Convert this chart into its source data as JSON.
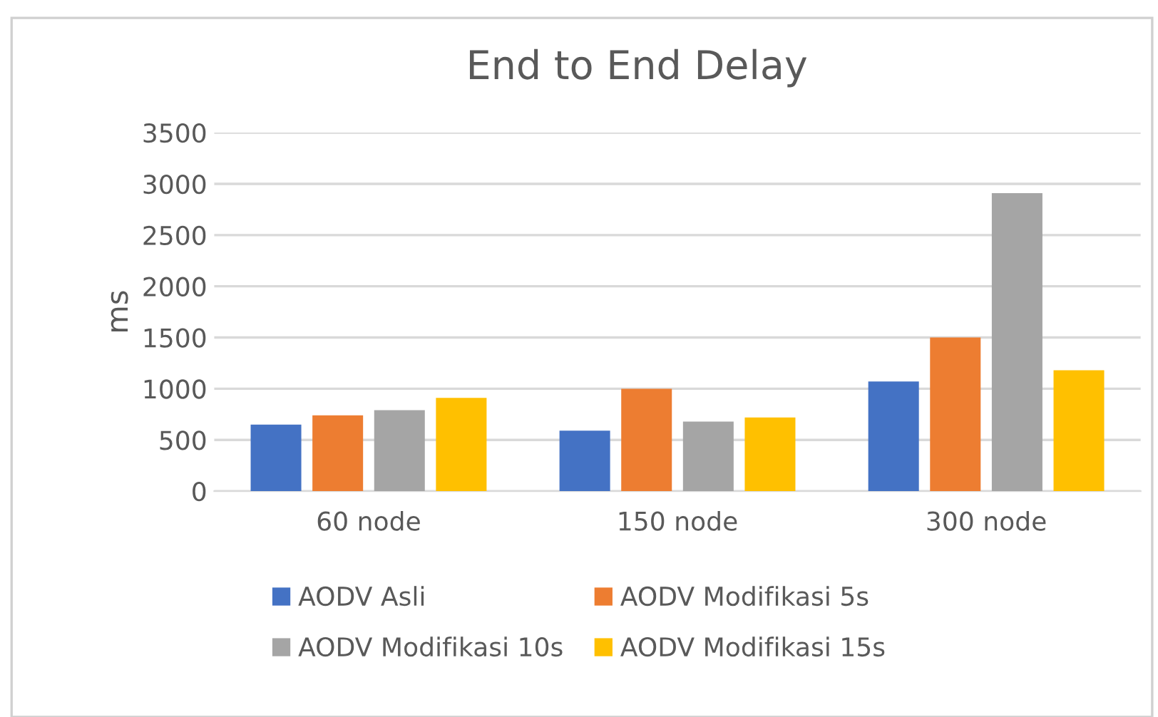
{
  "chart_data": {
    "type": "bar",
    "title": "End to End Delay",
    "ylabel": "ms",
    "categories": [
      "60 node",
      "150 node",
      "300 node"
    ],
    "series": [
      {
        "name": "AODV Asli",
        "color": "#4472c4",
        "values": [
          650,
          590,
          1070
        ]
      },
      {
        "name": "AODV Modifikasi 5s",
        "color": "#ed7d31",
        "values": [
          740,
          1000,
          1500
        ]
      },
      {
        "name": "AODV Modifikasi 10s",
        "color": "#a5a5a5",
        "values": [
          790,
          680,
          2910
        ]
      },
      {
        "name": "AODV Modifikasi 15s",
        "color": "#ffc000",
        "values": [
          910,
          720,
          1180
        ]
      }
    ],
    "ylim": [
      0,
      3500
    ],
    "yticks": [
      0,
      500,
      1000,
      1500,
      2000,
      2500,
      3000,
      3500
    ],
    "grid": "y",
    "legend": "bottom"
  }
}
